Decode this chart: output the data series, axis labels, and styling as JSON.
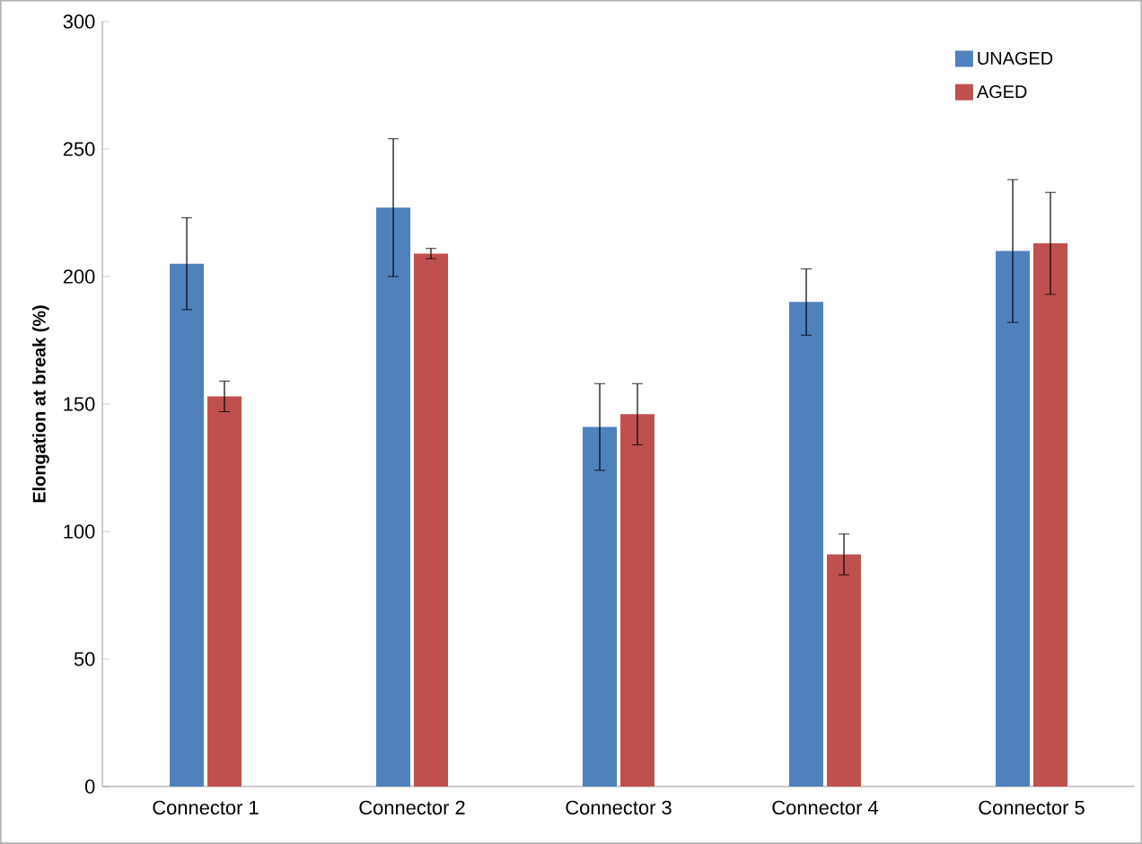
{
  "chart_data": {
    "type": "bar",
    "ylabel": "Elongation at break (%)",
    "categories": [
      "Connector 1",
      "Connector 2",
      "Connector 3",
      "Connector 4",
      "Connector 5"
    ],
    "series": [
      {
        "name": "UNAGED",
        "color": "#4f81bd",
        "values": [
          205,
          227,
          141,
          190,
          210
        ],
        "errors": [
          18,
          27,
          17,
          13,
          28
        ]
      },
      {
        "name": "AGED",
        "color": "#c0504d",
        "values": [
          153,
          209,
          146,
          91,
          213
        ],
        "errors": [
          6,
          2,
          12,
          8,
          20
        ]
      }
    ],
    "ylim": [
      0,
      300
    ],
    "yticks": [
      0,
      50,
      100,
      150,
      200,
      250,
      300
    ],
    "legend": "top right"
  }
}
